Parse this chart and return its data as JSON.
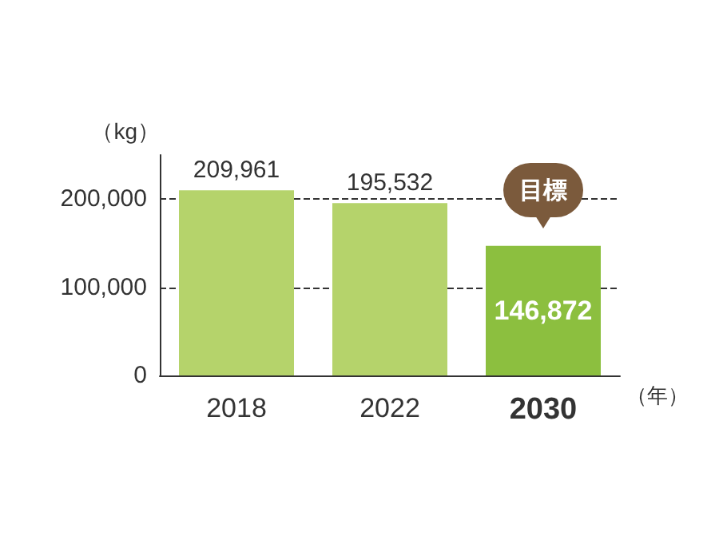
{
  "chart_data": {
    "type": "bar",
    "ylabel": "（kg）",
    "xlabel": "（年）",
    "categories": [
      "2018",
      "2022",
      "2030"
    ],
    "values": [
      209961,
      195532,
      146872
    ],
    "colors": [
      "#b5d36b",
      "#b5d36b",
      "#8cbf3f"
    ],
    "value_labels": [
      "209,961",
      "195,532",
      "146,872"
    ],
    "ylim": [
      0,
      250000
    ],
    "yticks": [
      {
        "value": 0,
        "label": "0"
      },
      {
        "value": 100000,
        "label": "100,000"
      },
      {
        "value": 200000,
        "label": "200,000"
      }
    ],
    "grid": "y",
    "annotations": [
      {
        "text": "目標",
        "x": "2030",
        "y": 146872
      }
    ]
  }
}
